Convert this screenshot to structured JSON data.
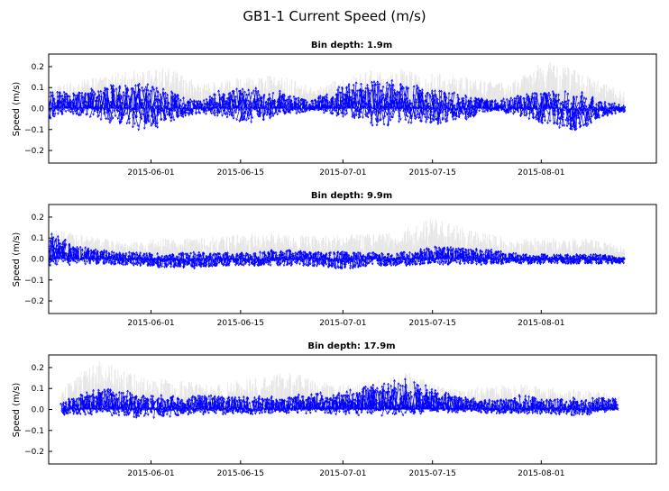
{
  "figure": {
    "title": "GB1-1 Current Speed (m/s)"
  },
  "colors": {
    "vectors": "#0000ff",
    "speed_background": "#e6e6e6",
    "axes": "#000000",
    "background": "#ffffff"
  },
  "chart_data": [
    {
      "type": "vector-stick",
      "title": "Bin depth: 1.9m",
      "xlabel": "",
      "ylabel": "Speed (m/s)",
      "xlim": [
        "2015-05-16",
        "2015-08-19"
      ],
      "ylim": [
        -0.26,
        0.26
      ],
      "xticks": [
        "2015-06-01",
        "2015-06-15",
        "2015-07-01",
        "2015-07-15",
        "2015-08-01"
      ],
      "yticks": [
        -0.2,
        -0.1,
        0.0,
        0.1,
        0.2
      ],
      "ytick_labels": [
        "−0.2",
        "−0.1",
        "0.0",
        "0.1",
        "0.2"
      ],
      "data_start": "2015-05-16",
      "data_end": "2015-08-14",
      "series": [
        {
          "name": "",
          "kind": "stick-envelope",
          "x": [
            "2015-05-16",
            "2015-05-20",
            "2015-05-25",
            "2015-05-30",
            "2015-06-03",
            "2015-06-08",
            "2015-06-12",
            "2015-06-17",
            "2015-06-21",
            "2015-06-26",
            "2015-07-01",
            "2015-07-06",
            "2015-07-10",
            "2015-07-15",
            "2015-07-20",
            "2015-07-25",
            "2015-07-29",
            "2015-08-03",
            "2015-08-07",
            "2015-08-10",
            "2015-08-14"
          ],
          "u_amp": [
            0.07,
            0.05,
            0.09,
            0.12,
            0.08,
            0.05,
            0.07,
            0.09,
            0.06,
            0.04,
            0.07,
            0.1,
            0.09,
            0.08,
            0.06,
            0.04,
            0.06,
            0.09,
            0.1,
            0.06,
            0.04
          ],
          "v_amp": [
            0.08,
            0.06,
            0.1,
            0.13,
            0.1,
            0.04,
            0.07,
            0.1,
            0.07,
            0.03,
            0.08,
            0.12,
            0.11,
            0.1,
            0.07,
            0.03,
            0.06,
            0.1,
            0.11,
            0.05,
            0.02
          ],
          "v_mean": [
            0.03,
            0.03,
            0.03,
            0.01,
            0.01,
            0.01,
            0.03,
            0.02,
            0.03,
            0.02,
            0.05,
            0.04,
            0.04,
            0.01,
            0.01,
            0.02,
            0.02,
            0.0,
            -0.02,
            0.0,
            0.0
          ]
        },
        {
          "name": "",
          "kind": "speed-background",
          "x": [
            "2015-05-16",
            "2015-05-22",
            "2015-05-28",
            "2015-06-03",
            "2015-06-09",
            "2015-06-15",
            "2015-06-21",
            "2015-06-27",
            "2015-07-03",
            "2015-07-09",
            "2015-07-15",
            "2015-07-21",
            "2015-07-27",
            "2015-08-02",
            "2015-08-08",
            "2015-08-14"
          ],
          "speed": [
            0.1,
            0.14,
            0.18,
            0.2,
            0.12,
            0.15,
            0.16,
            0.1,
            0.18,
            0.2,
            0.17,
            0.15,
            0.12,
            0.24,
            0.16,
            0.08
          ]
        }
      ]
    },
    {
      "type": "vector-stick",
      "title": "Bin depth: 9.9m",
      "xlabel": "",
      "ylabel": "Speed (m/s)",
      "xlim": [
        "2015-05-16",
        "2015-08-19"
      ],
      "ylim": [
        -0.26,
        0.26
      ],
      "xticks": [
        "2015-06-01",
        "2015-06-15",
        "2015-07-01",
        "2015-07-15",
        "2015-08-01"
      ],
      "yticks": [
        -0.2,
        -0.1,
        0.0,
        0.1,
        0.2
      ],
      "ytick_labels": [
        "−0.2",
        "−0.1",
        "0.0",
        "0.1",
        "0.2"
      ],
      "data_start": "2015-05-16",
      "data_end": "2015-08-14",
      "series": [
        {
          "name": "",
          "kind": "stick-envelope",
          "x": [
            "2015-05-16",
            "2015-05-20",
            "2015-05-25",
            "2015-05-30",
            "2015-06-03",
            "2015-06-08",
            "2015-06-12",
            "2015-06-17",
            "2015-06-21",
            "2015-06-26",
            "2015-07-01",
            "2015-07-06",
            "2015-07-10",
            "2015-07-15",
            "2015-07-20",
            "2015-07-25",
            "2015-07-29",
            "2015-08-03",
            "2015-08-07",
            "2015-08-10",
            "2015-08-14"
          ],
          "u_amp": [
            0.1,
            0.06,
            0.04,
            0.04,
            0.04,
            0.04,
            0.04,
            0.04,
            0.04,
            0.04,
            0.04,
            0.04,
            0.04,
            0.05,
            0.04,
            0.04,
            0.03,
            0.03,
            0.03,
            0.03,
            0.03
          ],
          "v_amp": [
            0.1,
            0.05,
            0.04,
            0.04,
            0.04,
            0.05,
            0.04,
            0.04,
            0.05,
            0.04,
            0.05,
            0.04,
            0.04,
            0.05,
            0.05,
            0.04,
            0.03,
            0.03,
            0.03,
            0.03,
            0.02
          ],
          "v_mean": [
            0.07,
            0.03,
            0.01,
            0.0,
            -0.01,
            -0.01,
            0.0,
            0.0,
            0.01,
            0.0,
            -0.01,
            0.0,
            0.0,
            0.02,
            0.02,
            0.01,
            0.0,
            0.0,
            0.0,
            0.0,
            -0.01
          ]
        },
        {
          "name": "",
          "kind": "speed-background",
          "x": [
            "2015-05-16",
            "2015-05-22",
            "2015-05-28",
            "2015-06-03",
            "2015-06-09",
            "2015-06-15",
            "2015-06-21",
            "2015-06-27",
            "2015-07-03",
            "2015-07-09",
            "2015-07-15",
            "2015-07-21",
            "2015-07-27",
            "2015-08-02",
            "2015-08-08",
            "2015-08-14"
          ],
          "speed": [
            0.14,
            0.12,
            0.08,
            0.1,
            0.1,
            0.12,
            0.12,
            0.11,
            0.12,
            0.13,
            0.2,
            0.14,
            0.1,
            0.1,
            0.1,
            0.06
          ]
        }
      ]
    },
    {
      "type": "vector-stick",
      "title": "Bin depth: 17.9m",
      "xlabel": "",
      "ylabel": "Speed (m/s)",
      "xlim": [
        "2015-05-16",
        "2015-08-19"
      ],
      "ylim": [
        -0.26,
        0.26
      ],
      "xticks": [
        "2015-06-01",
        "2015-06-15",
        "2015-07-01",
        "2015-07-15",
        "2015-08-01"
      ],
      "yticks": [
        -0.2,
        -0.1,
        0.0,
        0.1,
        0.2
      ],
      "ytick_labels": [
        "−0.2",
        "−0.1",
        "0.0",
        "0.1",
        "0.2"
      ],
      "data_start": "2015-05-18",
      "data_end": "2015-08-13",
      "series": [
        {
          "name": "",
          "kind": "stick-envelope",
          "x": [
            "2015-05-18",
            "2015-05-22",
            "2015-05-26",
            "2015-05-30",
            "2015-06-03",
            "2015-06-08",
            "2015-06-12",
            "2015-06-17",
            "2015-06-21",
            "2015-06-26",
            "2015-07-01",
            "2015-07-06",
            "2015-07-10",
            "2015-07-15",
            "2015-07-20",
            "2015-07-25",
            "2015-07-29",
            "2015-08-03",
            "2015-08-07",
            "2015-08-10",
            "2015-08-13"
          ],
          "u_amp": [
            0.05,
            0.08,
            0.1,
            0.06,
            0.07,
            0.06,
            0.06,
            0.05,
            0.05,
            0.06,
            0.07,
            0.08,
            0.09,
            0.07,
            0.05,
            0.05,
            0.05,
            0.05,
            0.06,
            0.05,
            0.04
          ],
          "v_amp": [
            0.04,
            0.06,
            0.07,
            0.06,
            0.06,
            0.05,
            0.05,
            0.05,
            0.04,
            0.05,
            0.06,
            0.07,
            0.1,
            0.06,
            0.04,
            0.04,
            0.05,
            0.04,
            0.05,
            0.04,
            0.03
          ],
          "v_mean": [
            0.01,
            0.04,
            0.06,
            0.02,
            0.02,
            0.03,
            0.03,
            0.03,
            0.03,
            0.04,
            0.05,
            0.06,
            0.08,
            0.06,
            0.03,
            0.02,
            0.03,
            0.02,
            0.02,
            0.03,
            0.04
          ]
        },
        {
          "name": "",
          "kind": "speed-background",
          "x": [
            "2015-05-18",
            "2015-05-24",
            "2015-05-30",
            "2015-06-05",
            "2015-06-11",
            "2015-06-17",
            "2015-06-23",
            "2015-06-29",
            "2015-07-05",
            "2015-07-11",
            "2015-07-17",
            "2015-07-23",
            "2015-07-29",
            "2015-08-04",
            "2015-08-10",
            "2015-08-13"
          ],
          "speed": [
            0.1,
            0.24,
            0.16,
            0.14,
            0.12,
            0.15,
            0.18,
            0.12,
            0.13,
            0.18,
            0.1,
            0.11,
            0.12,
            0.1,
            0.09,
            0.06
          ]
        }
      ]
    }
  ]
}
